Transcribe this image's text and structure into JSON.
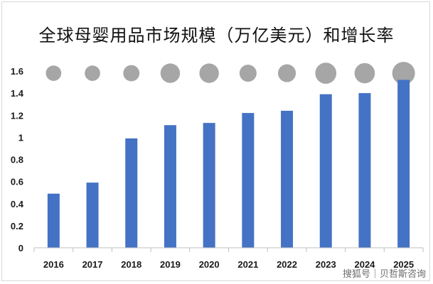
{
  "title": "全球母婴用品市场规模（万亿美元）和增长率",
  "watermark": "搜狐号｜贝哲斯咨询",
  "colors": {
    "bar": "#4472c4",
    "bubble": "#a6a6a6",
    "axis": "#bfbfbf"
  },
  "chart_data": {
    "type": "bar",
    "categories": [
      "2016",
      "2017",
      "2018",
      "2019",
      "2020",
      "2021",
      "2022",
      "2023",
      "2024",
      "2025"
    ],
    "series": [
      {
        "values": [
          0.49,
          0.59,
          0.99,
          1.11,
          1.13,
          1.22,
          1.24,
          1.39,
          1.4,
          1.52
        ]
      },
      {
        "values": [
          0.5,
          0.5,
          0.6,
          1.0,
          1.0,
          0.7,
          0.8,
          1.2,
          1.1,
          1.4
        ]
      }
    ],
    "yticks": [
      "0",
      "0.2",
      "0.4",
      "0.6",
      "0.8",
      "1",
      "1.2",
      "1.4",
      "1.6"
    ],
    "ylim": [
      0,
      1.6
    ],
    "xlabel": "",
    "ylabel": "",
    "grid": false
  }
}
